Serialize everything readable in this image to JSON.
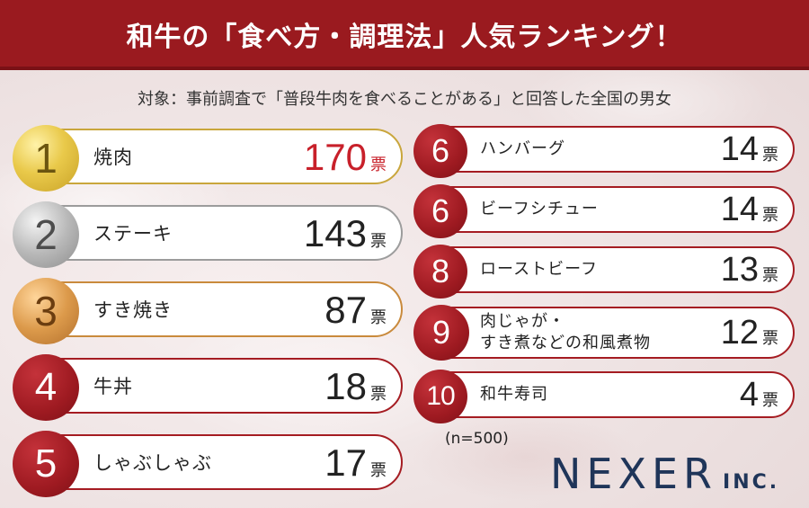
{
  "title": "和牛の「食べ方・調理法」人気ランキング！",
  "subtitle": "対象：事前調査で「普段牛肉を食べることがある」と回答した全国の男女",
  "unit": "票",
  "left_items": [
    {
      "rank": "1",
      "name": "焼肉",
      "votes": "170"
    },
    {
      "rank": "2",
      "name": "ステーキ",
      "votes": "143"
    },
    {
      "rank": "3",
      "name": "すき焼き",
      "votes": "87"
    },
    {
      "rank": "4",
      "name": "牛丼",
      "votes": "18"
    },
    {
      "rank": "5",
      "name": "しゃぶしゃぶ",
      "votes": "17"
    }
  ],
  "right_items": [
    {
      "rank": "6",
      "name": "ハンバーグ",
      "votes": "14"
    },
    {
      "rank": "6",
      "name": "ビーフシチュー",
      "votes": "14"
    },
    {
      "rank": "8",
      "name": "ローストビーフ",
      "votes": "13"
    },
    {
      "rank": "9",
      "name_line1": "肉じゃが・",
      "name_line2": "すき煮などの和風煮物",
      "votes": "12"
    },
    {
      "rank": "10",
      "name": "和牛寿司",
      "votes": "4"
    }
  ],
  "sample_size": "(n=500)",
  "logo": {
    "main": "NEXER",
    "sub": "INC."
  },
  "colors": {
    "accent": "#9a1a1f",
    "highlight": "#c8202a",
    "logo": "#1f3559"
  }
}
